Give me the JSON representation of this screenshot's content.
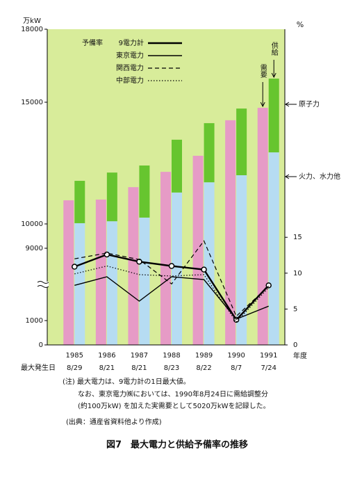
{
  "chart_data": {
    "type": "bar",
    "y_unit": "万kW",
    "y2_unit": "%",
    "x_label": "年度",
    "date_label": "最大発生日",
    "categories": [
      "1985",
      "1986",
      "1987",
      "1988",
      "1989",
      "1990",
      "1991"
    ],
    "dates": [
      "8/29",
      "8/21",
      "8/21",
      "8/23",
      "8/22",
      "8/7",
      "7/24"
    ],
    "ylim": [
      0,
      18000
    ],
    "yticks": [
      0,
      1000,
      9000,
      10000,
      15000,
      18000
    ],
    "ybreak": [
      1000,
      9000
    ],
    "y2lim": [
      0,
      44
    ],
    "y2ticks": [
      0,
      5,
      10,
      15
    ],
    "background": "#d8ec9a",
    "supply_label": "供給",
    "series": [
      {
        "name": "需要",
        "color": "#e69bc6",
        "values": [
          10970,
          11000,
          11510,
          12140,
          12800,
          14260,
          14770
        ]
      },
      {
        "name": "火力、水力他",
        "color": "#b6dcf2",
        "stacked": true,
        "values": [
          10030,
          10110,
          10260,
          11290,
          11710,
          12000,
          12940
        ]
      },
      {
        "name": "原子力",
        "color": "#67c52f",
        "stacked": true,
        "values": [
          1740,
          2000,
          2140,
          2170,
          2430,
          2740,
          3030
        ]
      }
    ],
    "legend_title": "予備率",
    "line_series": [
      {
        "name": "9電力計",
        "axis": "y2",
        "color": "#000000",
        "width": 2.4,
        "dash": "solid",
        "markers": true,
        "values": [
          10.9,
          12.6,
          11.6,
          11.0,
          10.5,
          3.5,
          8.3
        ]
      },
      {
        "name": "東京電力",
        "axis": "y2",
        "color": "#000000",
        "width": 1.4,
        "dash": "solid",
        "markers": false,
        "values": [
          8.3,
          9.5,
          6.1,
          9.5,
          9.1,
          3.6,
          5.4
        ]
      },
      {
        "name": "関西電力",
        "axis": "y2",
        "color": "#000000",
        "width": 1.2,
        "dash": "dashed",
        "markers": false,
        "values": [
          12.0,
          12.8,
          11.9,
          8.5,
          14.5,
          4.0,
          8.2
        ]
      },
      {
        "name": "中部電力",
        "axis": "y2",
        "color": "#000000",
        "width": 1.2,
        "dash": "dotted",
        "markers": false,
        "values": [
          9.9,
          11.0,
          9.8,
          9.6,
          9.8,
          3.2,
          8.0
        ]
      }
    ],
    "notes": [
      "(注) 最大電力は、9電力計の1日最大値。",
      "なお、東京電力㈱においては、1990年8月24日に需給調整分",
      "(約100万kW) を加えた実需要として5020万kWを記録した。"
    ],
    "source": "(出典：通産省資料他より作成)",
    "caption": "図7　最大電力と供給予備率の推移"
  }
}
